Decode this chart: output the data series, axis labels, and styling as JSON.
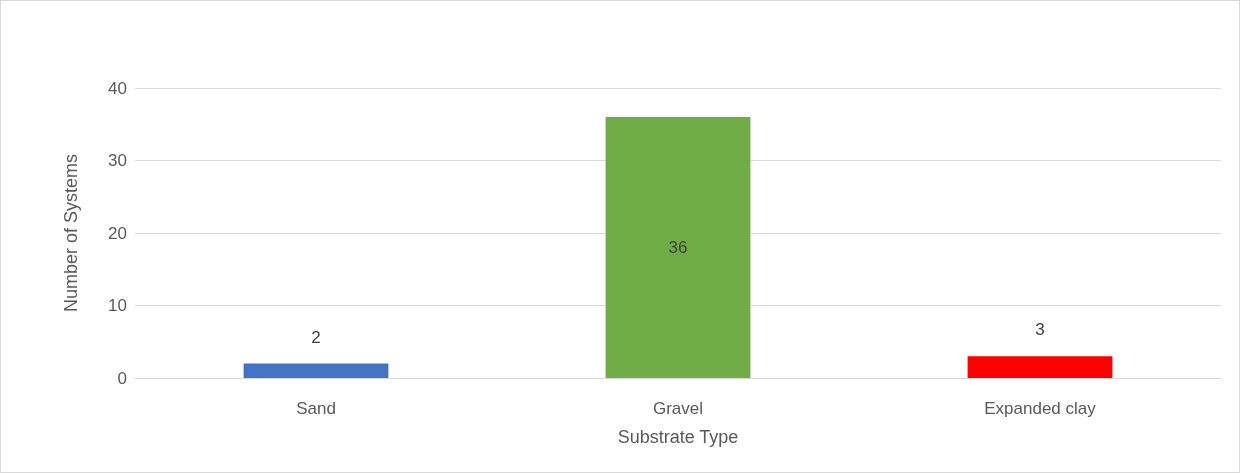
{
  "chart_data": {
    "type": "bar",
    "xlabel": "Substrate Type",
    "ylabel": "Number of Systems",
    "categories": [
      "Sand",
      "Gravel",
      "Expanded clay"
    ],
    "values": [
      2,
      36,
      3
    ],
    "colors": [
      "#4472c4",
      "#70ad47",
      "#ff0000"
    ],
    "ylim": [
      0,
      40
    ],
    "yticks": [
      0,
      10,
      20,
      30,
      40
    ],
    "grid": "y",
    "data_labels": true
  }
}
